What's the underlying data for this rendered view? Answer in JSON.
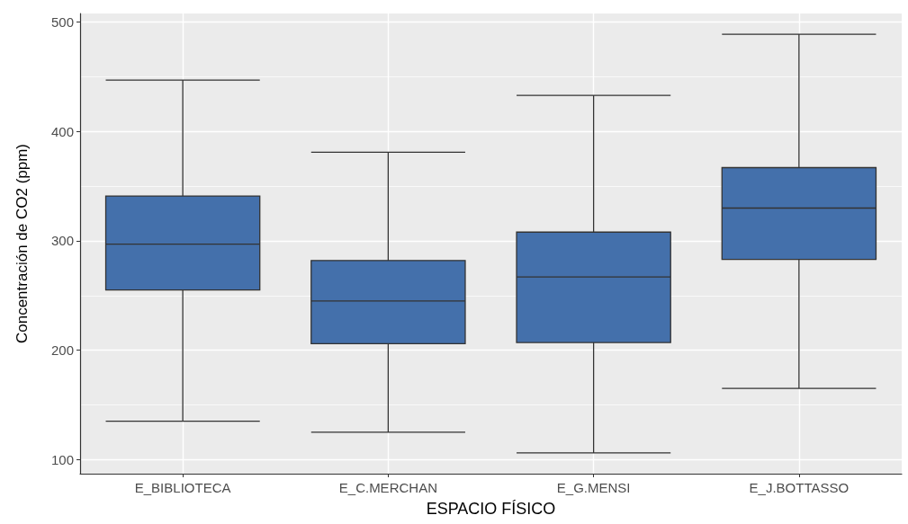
{
  "chart_data": {
    "type": "box",
    "xlabel": "ESPACIO FÍSICO",
    "ylabel": "Concentración de CO2 (ppm)",
    "categories": [
      "E_BIBLIOTECA",
      "E_C.MERCHAN",
      "E_G.MENSI",
      "E_J.BOTTASSO"
    ],
    "boxes": [
      {
        "low": 135,
        "q1": 255,
        "median": 297,
        "q3": 341,
        "high": 447
      },
      {
        "low": 125,
        "q1": 206,
        "median": 245,
        "q3": 282,
        "high": 381
      },
      {
        "low": 106,
        "q1": 207,
        "median": 267,
        "q3": 308,
        "high": 433
      },
      {
        "low": 165,
        "q1": 283,
        "median": 330,
        "q3": 367,
        "high": 489
      }
    ],
    "color": "#4470ab",
    "ylim": [
      87,
      508
    ],
    "yticks": [
      100,
      200,
      300,
      400,
      500
    ],
    "grid": true
  }
}
